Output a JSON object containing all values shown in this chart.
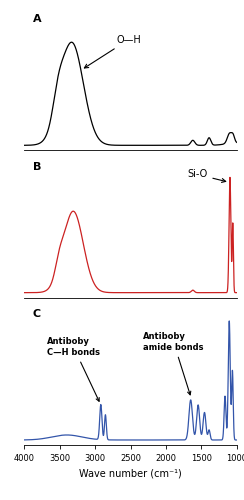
{
  "xlabel": "Wave number (cm⁻¹)",
  "xlim": [
    4000,
    1000
  ],
  "panel_labels": [
    "A",
    "B",
    "C"
  ],
  "colors": [
    "black",
    "#cc2222",
    "#3355aa"
  ],
  "background_color": "#ffffff"
}
